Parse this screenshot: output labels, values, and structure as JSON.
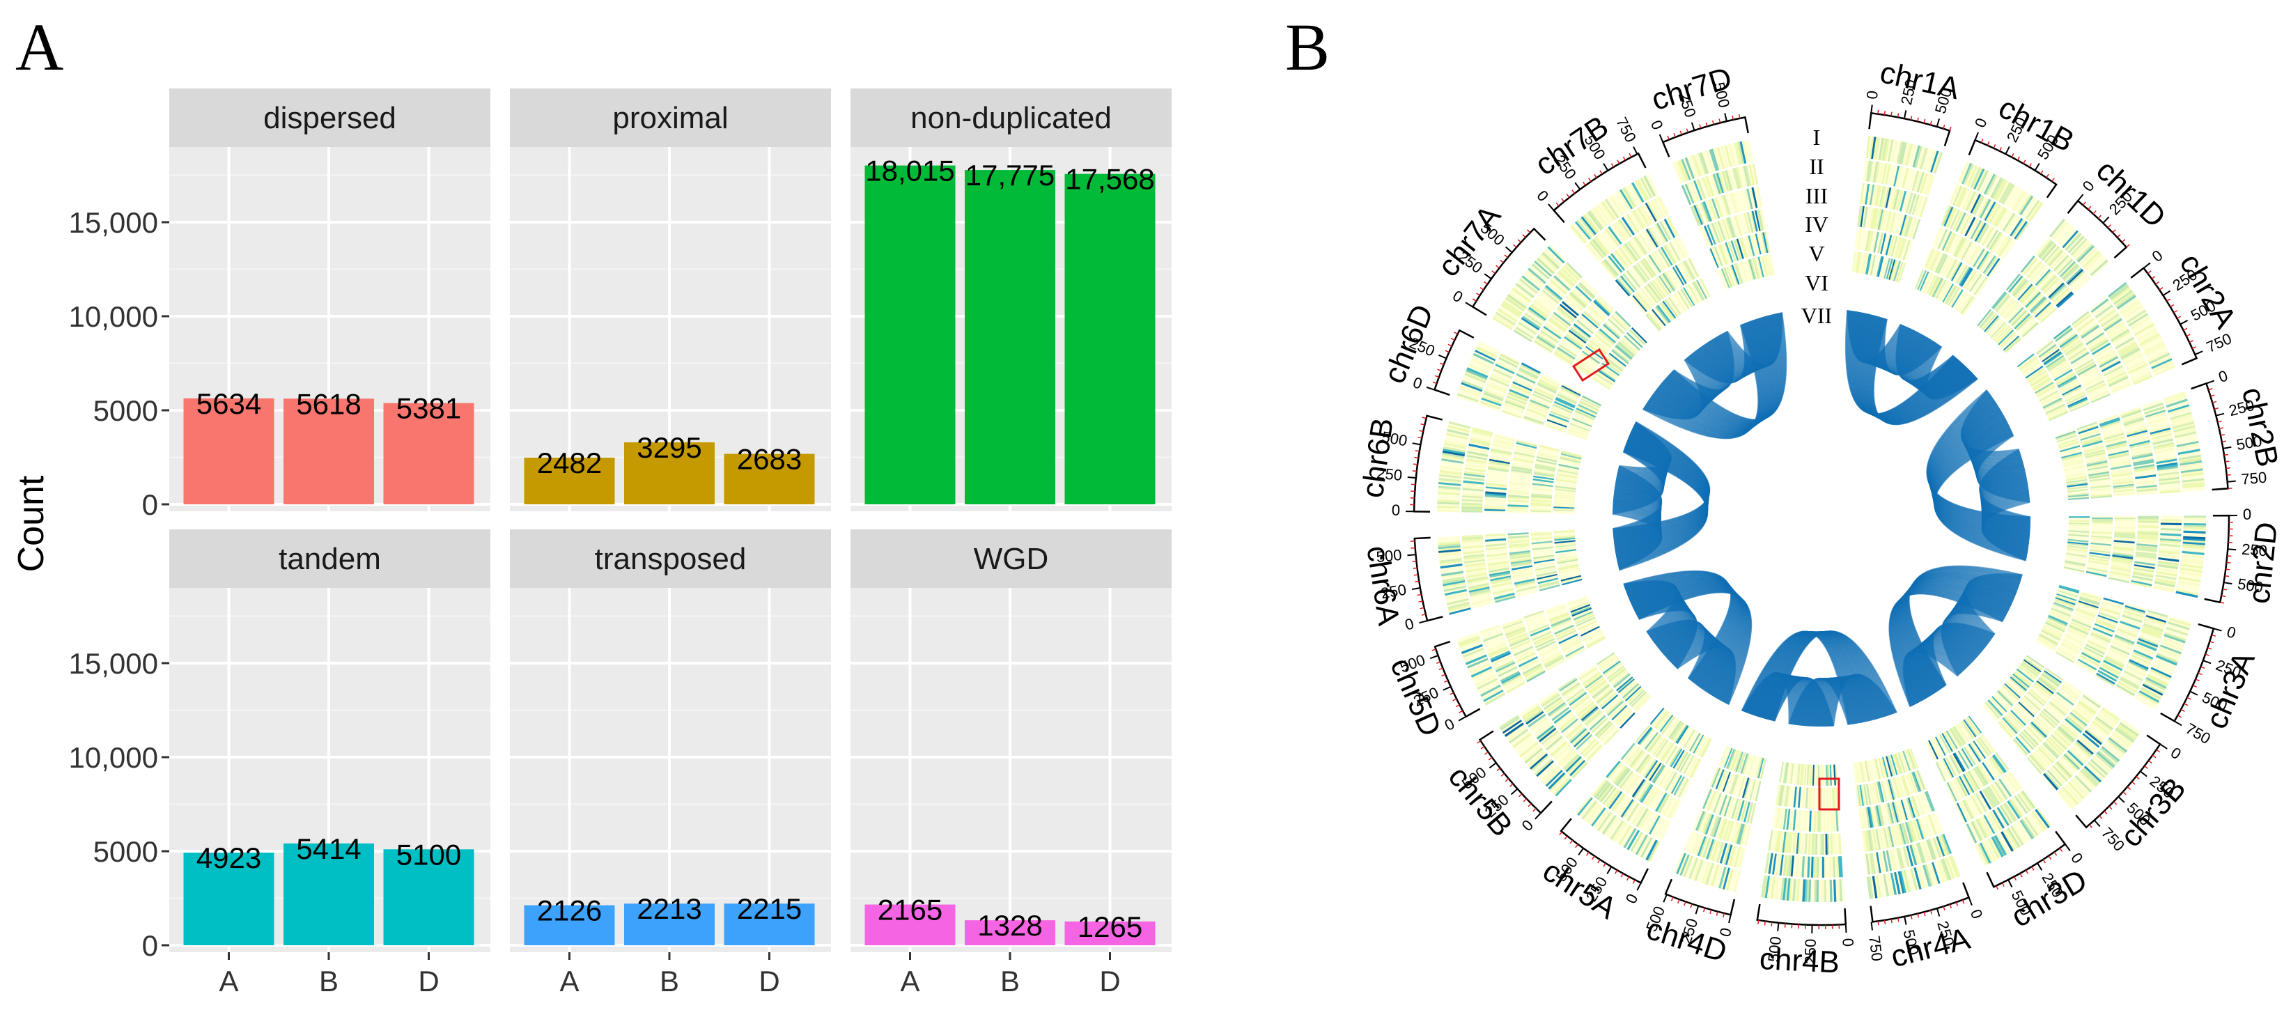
{
  "panel_a_letter": "A",
  "panel_b_letter": "B",
  "chart_data": [
    {
      "type": "bar",
      "panel": "A",
      "title": "",
      "xlabel": "",
      "ylabel": "Count",
      "ylim": [
        0,
        19000
      ],
      "y_ticks": [
        0,
        5000,
        10000,
        15000
      ],
      "y_tick_labels": [
        "0",
        "5000",
        "10,000",
        "15,000"
      ],
      "grid": true,
      "categories": [
        "A",
        "B",
        "D"
      ],
      "facets": [
        {
          "name": "dispersed",
          "color": "#f8766d",
          "values": [
            5634,
            5618,
            5381
          ],
          "labels": [
            "5634",
            "5618",
            "5381"
          ]
        },
        {
          "name": "proximal",
          "color": "#c49a00",
          "values": [
            2482,
            3295,
            2683
          ],
          "labels": [
            "2482",
            "3295",
            "2683"
          ]
        },
        {
          "name": "non-duplicated",
          "color": "#00ba38",
          "values": [
            18015,
            17775,
            17568
          ],
          "labels": [
            "18,015",
            "17,775",
            "17,568"
          ]
        },
        {
          "name": "tandem",
          "color": "#00bfc4",
          "values": [
            4923,
            5414,
            5100
          ],
          "labels": [
            "4923",
            "5414",
            "5100"
          ]
        },
        {
          "name": "transposed",
          "color": "#3ca2fb",
          "values": [
            2126,
            2213,
            2215
          ],
          "labels": [
            "2126",
            "2213",
            "2215"
          ]
        },
        {
          "name": "WGD",
          "color": "#f564e3",
          "values": [
            2165,
            1328,
            1265
          ],
          "labels": [
            "2165",
            "1328",
            "1265"
          ]
        }
      ]
    },
    {
      "type": "circos",
      "panel": "B",
      "track_labels": [
        "I",
        "II",
        "III",
        "IV",
        "V",
        "VI",
        "VII"
      ],
      "link_color": "#1170b5",
      "highlight_color": "#e31a1c",
      "chromosomes": [
        {
          "name": "chr1A",
          "length": 600,
          "ticks": [
            "0",
            "250",
            "500"
          ]
        },
        {
          "name": "chr1B",
          "length": 690,
          "ticks": [
            "0",
            "250",
            "500"
          ]
        },
        {
          "name": "chr1D",
          "length": 500,
          "ticks": [
            "0",
            "250"
          ]
        },
        {
          "name": "chr2A",
          "length": 780,
          "ticks": [
            "0",
            "250",
            "500",
            "750"
          ]
        },
        {
          "name": "chr2B",
          "length": 800,
          "ticks": [
            "0",
            "250",
            "500",
            "750"
          ]
        },
        {
          "name": "chr2D",
          "length": 650,
          "ticks": [
            "0",
            "250",
            "500"
          ]
        },
        {
          "name": "chr3A",
          "length": 750,
          "ticks": [
            "0",
            "250",
            "500",
            "750"
          ]
        },
        {
          "name": "chr3B",
          "length": 830,
          "ticks": [
            "0",
            "250",
            "500",
            "750"
          ]
        },
        {
          "name": "chr3D",
          "length": 620,
          "ticks": [
            "0",
            "250",
            "500"
          ]
        },
        {
          "name": "chr4A",
          "length": 740,
          "ticks": [
            "0",
            "250",
            "500",
            "750"
          ]
        },
        {
          "name": "chr4B",
          "length": 660,
          "ticks": [
            "0",
            "250",
            "500"
          ]
        },
        {
          "name": "chr4D",
          "length": 510,
          "ticks": [
            "0",
            "250",
            "500"
          ]
        },
        {
          "name": "chr5A",
          "length": 710,
          "ticks": [
            "0",
            "250",
            "500"
          ]
        },
        {
          "name": "chr5B",
          "length": 710,
          "ticks": [
            "0",
            "250",
            "500"
          ]
        },
        {
          "name": "chr5D",
          "length": 570,
          "ticks": [
            "0",
            "250",
            "500"
          ]
        },
        {
          "name": "chr6A",
          "length": 620,
          "ticks": [
            "0",
            "250",
            "500"
          ]
        },
        {
          "name": "chr6B",
          "length": 720,
          "ticks": [
            "0",
            "250",
            "500"
          ]
        },
        {
          "name": "chr6D",
          "length": 480,
          "ticks": [
            "0",
            "250"
          ]
        },
        {
          "name": "chr7A",
          "length": 740,
          "ticks": [
            "0",
            "250",
            "500"
          ]
        },
        {
          "name": "chr7B",
          "length": 760,
          "ticks": [
            "0",
            "250",
            "500",
            "750"
          ]
        },
        {
          "name": "chr7D",
          "length": 640,
          "ticks": [
            "0",
            "250",
            "500"
          ]
        }
      ]
    }
  ]
}
